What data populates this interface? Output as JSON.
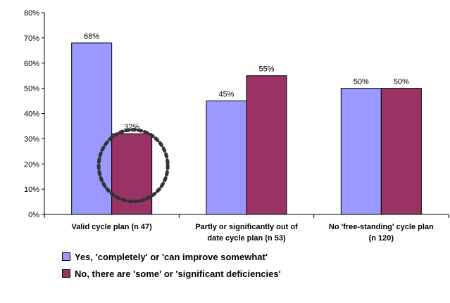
{
  "chart_data": {
    "type": "bar",
    "categories": [
      [
        "Valid cycle plan (n 47)"
      ],
      [
        "Partly or significantly out of",
        "date cycle plan (n 53)"
      ],
      [
        "No 'free-standing' cycle plan",
        "(n 120)"
      ]
    ],
    "series": [
      {
        "name": "Yes, 'completely' or 'can improve somewhat'",
        "color": "#9999ff",
        "values": [
          68,
          45,
          50
        ]
      },
      {
        "name": "No, there are 'some' or 'significant deficiencies'",
        "color": "#993366",
        "values": [
          32,
          55,
          50
        ]
      }
    ],
    "y_ticks": [
      "0%",
      "10%",
      "20%",
      "30%",
      "40%",
      "50%",
      "60%",
      "70%",
      "80%"
    ],
    "ylim": [
      0,
      80
    ],
    "value_suffix": "%",
    "grid": false,
    "legend_position": "bottom-left",
    "annotation": {
      "type": "dashed-circle",
      "category_index": 0,
      "series_index": 1
    }
  }
}
